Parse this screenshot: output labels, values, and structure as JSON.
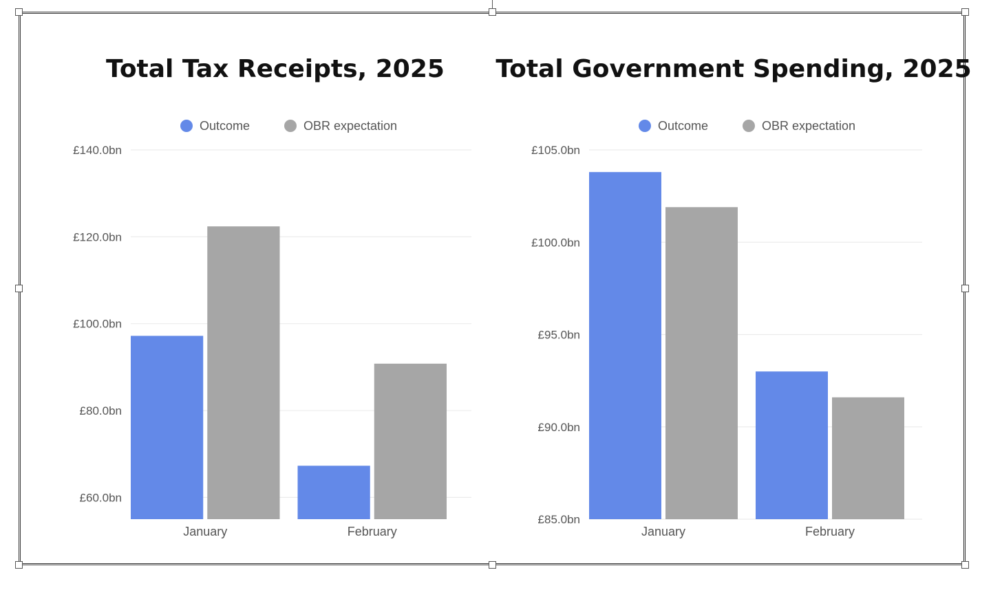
{
  "chart_data": [
    {
      "type": "bar",
      "title": "Total Tax Receipts, 2025",
      "categories": [
        "January",
        "February"
      ],
      "series": [
        {
          "name": "Outcome",
          "values": [
            97.2,
            67.3
          ]
        },
        {
          "name": "OBR expectation",
          "values": [
            122.4,
            90.8
          ]
        }
      ],
      "ylim": [
        55.0,
        140.0
      ],
      "yticks": [
        60.0,
        80.0,
        100.0,
        120.0,
        140.0
      ],
      "tick_labels": [
        "£60.0bn",
        "£80.0bn",
        "£100.0bn",
        "£120.0bn",
        "£140.0bn"
      ],
      "grid": true,
      "legend_position": "top"
    },
    {
      "type": "bar",
      "title": "Total Government Spending, 2025",
      "categories": [
        "January",
        "February"
      ],
      "series": [
        {
          "name": "Outcome",
          "values": [
            103.8,
            93.0
          ]
        },
        {
          "name": "OBR expectation",
          "values": [
            101.9,
            91.6
          ]
        }
      ],
      "ylim": [
        85.0,
        105.0
      ],
      "yticks": [
        85.0,
        90.0,
        95.0,
        100.0,
        105.0
      ],
      "tick_labels": [
        "£85.0bn",
        "£90.0bn",
        "£95.0bn",
        "£100.0bn",
        "£105.0bn"
      ],
      "grid": true,
      "legend_position": "top"
    }
  ],
  "colors": {
    "outcome": "#6389e8",
    "obr": "#a6a6a6"
  }
}
